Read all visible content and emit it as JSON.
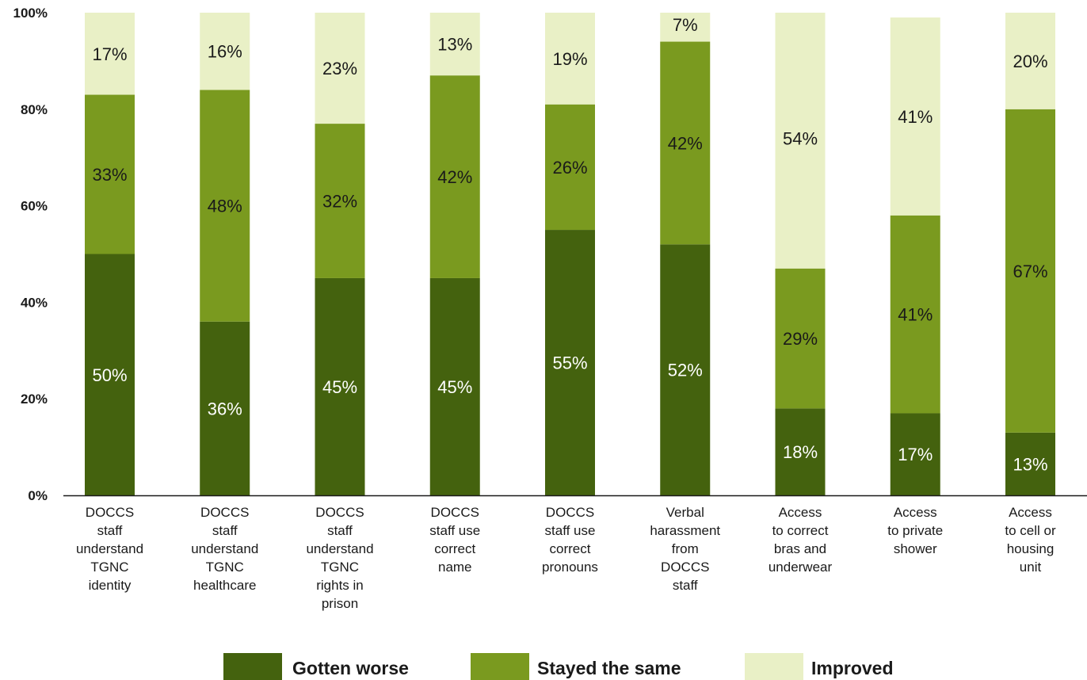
{
  "chart_data": {
    "type": "bar",
    "stacked": true,
    "title": "",
    "xlabel": "",
    "ylabel": "",
    "ylim": [
      0,
      100
    ],
    "yticks": [
      0,
      20,
      40,
      60,
      80,
      100
    ],
    "ytick_labels": [
      "0%",
      "20%",
      "40%",
      "60%",
      "80%",
      "100%"
    ],
    "grid": false,
    "legend_position": "bottom-center",
    "categories": [
      [
        "DOCCS",
        "staff",
        "understand",
        "TGNC",
        "identity"
      ],
      [
        "DOCCS",
        "staff",
        "understand",
        "TGNC",
        "healthcare"
      ],
      [
        "DOCCS",
        "staff",
        "understand",
        "TGNC",
        "rights in",
        "prison"
      ],
      [
        "DOCCS",
        "staff use",
        "correct",
        "name"
      ],
      [
        "DOCCS",
        "staff use",
        "correct",
        "pronouns"
      ],
      [
        "Verbal",
        "harassment",
        "from",
        "DOCCS",
        "staff"
      ],
      [
        "Access",
        "to correct",
        "bras and",
        "underwear"
      ],
      [
        "Access",
        "to private",
        "shower"
      ],
      [
        "Access",
        "to cell or",
        "housing",
        "unit"
      ]
    ],
    "series": [
      {
        "name": "Gotten worse",
        "color": "#44620e",
        "label_color": "#ffffff",
        "values": [
          50,
          36,
          45,
          45,
          55,
          52,
          18,
          17,
          13
        ],
        "labels": [
          "50%",
          "36%",
          "45%",
          "45%",
          "55%",
          "52%",
          "18%",
          "17%",
          "13%"
        ]
      },
      {
        "name": "Stayed the same",
        "color": "#7a9a1f",
        "label_color": "#1a1a1a",
        "values": [
          33,
          48,
          32,
          42,
          26,
          42,
          29,
          41,
          67
        ],
        "labels": [
          "33%",
          "48%",
          "32%",
          "42%",
          "26%",
          "42%",
          "29%",
          "41%",
          "67%"
        ]
      },
      {
        "name": "Improved",
        "color": "#e9f0c6",
        "label_color": "#1a1a1a",
        "values": [
          17,
          16,
          23,
          13,
          19,
          7,
          54,
          41,
          20
        ],
        "labels": [
          "17%",
          "16%",
          "23%",
          "13%",
          "19%",
          "7%",
          "54%",
          "41%",
          "20%"
        ]
      }
    ]
  }
}
